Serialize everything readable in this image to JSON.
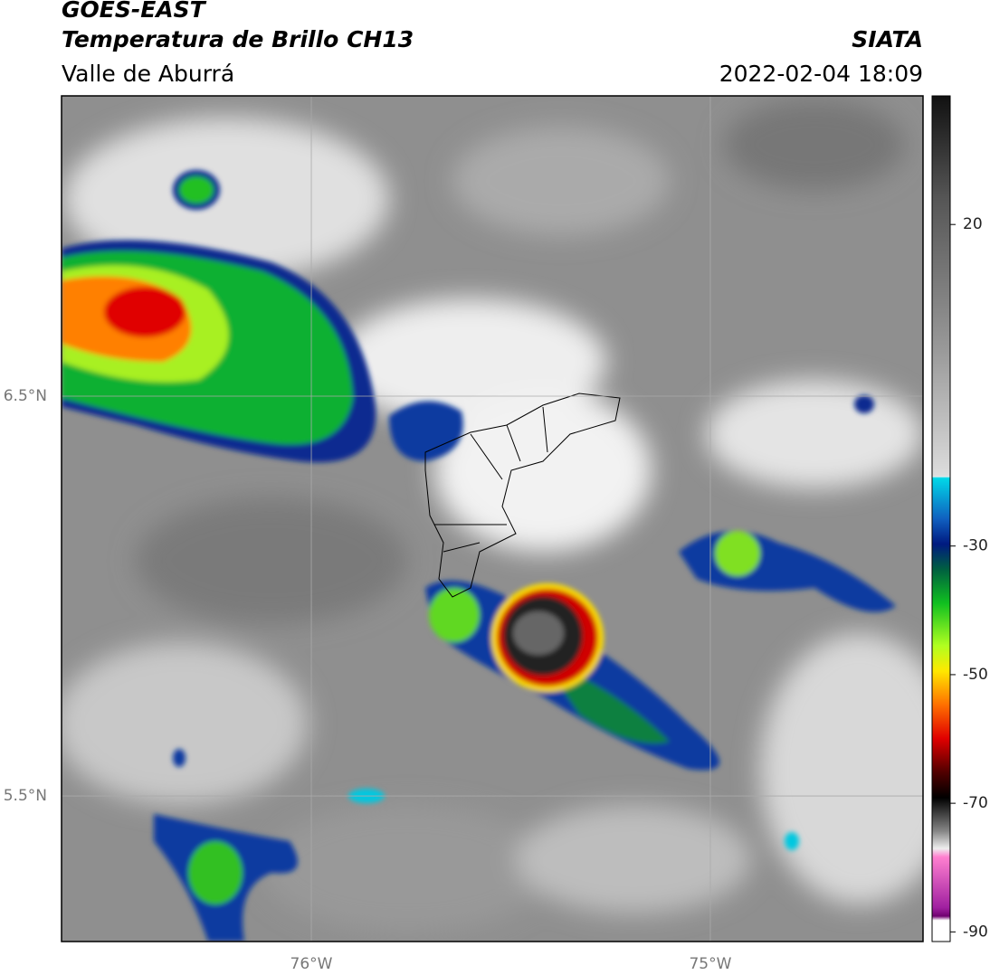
{
  "header": {
    "satellite": "GOES-EAST",
    "product": "Temperatura de Brillo CH13",
    "region": "Valle de Aburrá",
    "agency": "SIATA",
    "datetime": "2022-02-04 18:09"
  },
  "map": {
    "xlim": [
      -76.626,
      -74.467
    ],
    "ylim": [
      5.136,
      7.251
    ],
    "xticks": [
      {
        "value": -76,
        "label": "76°W"
      },
      {
        "value": -75,
        "label": "75°W"
      }
    ],
    "yticks": [
      {
        "value": 6.5,
        "label": "6.5°N"
      },
      {
        "value": 5.5,
        "label": "5.5°N"
      }
    ]
  },
  "colorbar": {
    "lim": [
      -91.5,
      40
    ],
    "ticks": [
      20,
      -30,
      -50,
      -70,
      -90
    ]
  }
}
